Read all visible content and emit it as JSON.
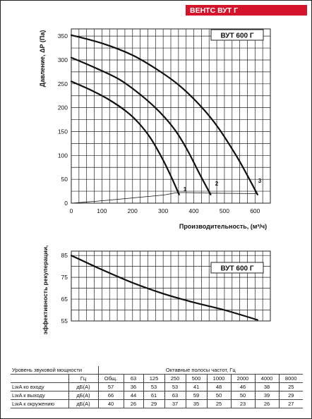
{
  "header": {
    "title": "ВЕНТС ВУТ Г",
    "band_color": "#d5142b"
  },
  "chart_data": [
    {
      "type": "line",
      "model_label": "ВУТ 600 Г",
      "xlabel": "Производительность, (м³/ч)",
      "ylabel": "Давление, ΔP (Па)",
      "xlim": [
        0,
        650
      ],
      "ylim": [
        0,
        365
      ],
      "x_ticks": [
        0,
        100,
        200,
        300,
        400,
        500,
        600
      ],
      "y_ticks": [
        0,
        50,
        100,
        150,
        200,
        250,
        300,
        350
      ],
      "grid": true,
      "series": [
        {
          "name": "1",
          "x": [
            0,
            60,
            120,
            180,
            220,
            260,
            300,
            330,
            352
          ],
          "y": [
            255,
            238,
            218,
            192,
            168,
            135,
            90,
            50,
            18
          ]
        },
        {
          "name": "2",
          "x": [
            0,
            80,
            160,
            230,
            290,
            340,
            380,
            420,
            455
          ],
          "y": [
            305,
            283,
            258,
            225,
            190,
            152,
            110,
            60,
            18
          ]
        },
        {
          "name": "3",
          "x": [
            0,
            100,
            200,
            280,
            350,
            420,
            480,
            540,
            575,
            608
          ],
          "y": [
            352,
            335,
            310,
            280,
            248,
            205,
            158,
            98,
            58,
            18
          ]
        },
        {
          "name": "",
          "x": [
            0,
            100,
            200,
            300,
            352,
            455,
            608
          ],
          "y": [
            0,
            5,
            11,
            17,
            22,
            21,
            20
          ]
        }
      ],
      "point_labels": [
        "1",
        "2",
        "3"
      ]
    },
    {
      "type": "line",
      "model_label": "ВУТ 600 Г",
      "ylabel": "эффективность рекуперации, %",
      "xlim": [
        0,
        650
      ],
      "ylim": [
        55,
        87
      ],
      "y_ticks": [
        55,
        65,
        75,
        85
      ],
      "grid": true,
      "series": [
        {
          "name": "",
          "x": [
            0,
            100,
            200,
            300,
            400,
            500,
            608
          ],
          "y": [
            85,
            78.5,
            72.5,
            67.5,
            63.5,
            60,
            55.5
          ]
        }
      ]
    }
  ],
  "sound_table": {
    "title": "Уровень звуковой мощности",
    "bands_title": "Октавные полосы частот, Гц",
    "unit_header": "Гц",
    "columns": [
      "Общ.",
      "63",
      "125",
      "250",
      "500",
      "1000",
      "2000",
      "4000",
      "8000"
    ],
    "rows": [
      {
        "label": "LwA ко входу",
        "unit": "дБ(А)",
        "values": [
          "57",
          "36",
          "53",
          "53",
          "41",
          "48",
          "46",
          "38",
          "25"
        ]
      },
      {
        "label": "LwA к выходу",
        "unit": "дБ(А)",
        "values": [
          "66",
          "44",
          "61",
          "63",
          "59",
          "50",
          "50",
          "39",
          "29"
        ]
      },
      {
        "label": "LwA к окружению",
        "unit": "дБ(А)",
        "values": [
          "40",
          "26",
          "29",
          "37",
          "35",
          "25",
          "23",
          "26",
          "27"
        ]
      }
    ]
  }
}
